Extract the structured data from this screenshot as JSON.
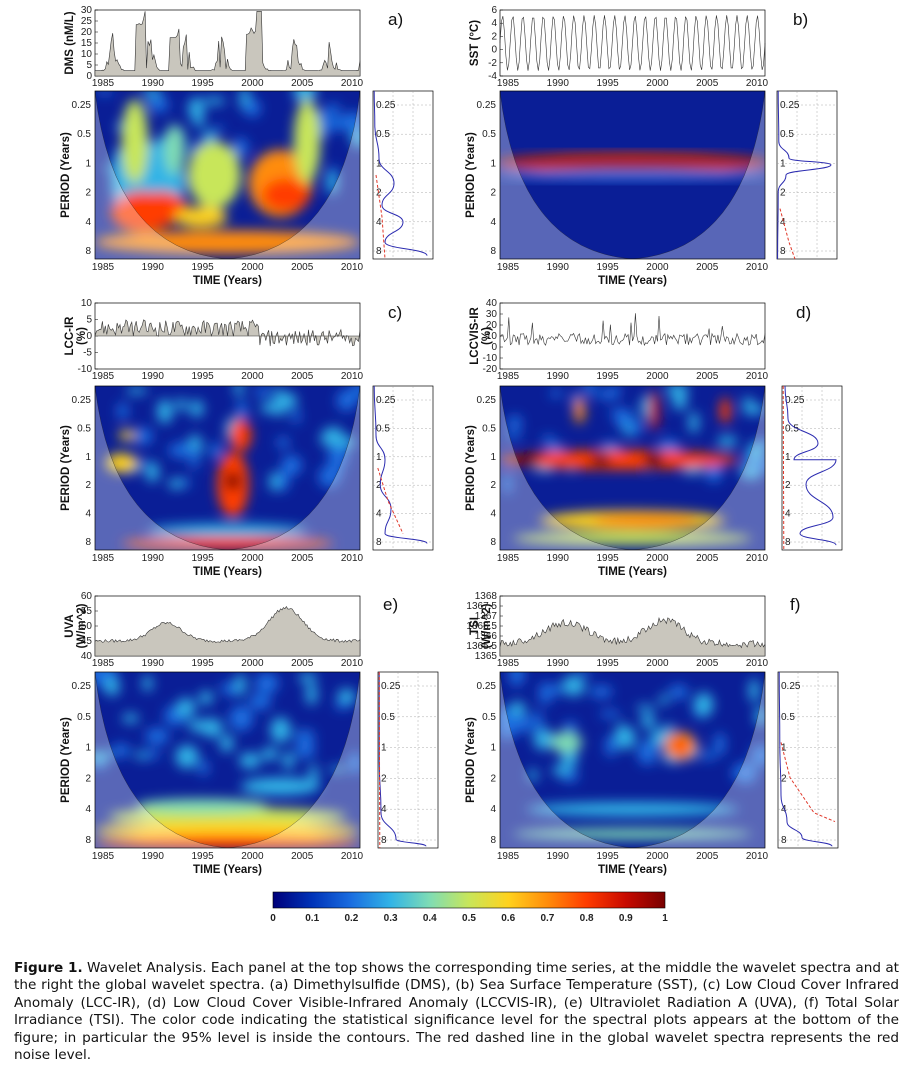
{
  "figure": {
    "xlabel": "TIME (Years)",
    "ylabel": "PERIOD (Years)",
    "year_ticks": [
      "1985",
      "1990",
      "1995",
      "2000",
      "2005",
      "2010"
    ],
    "period_ticks": [
      "0.25",
      "0.5",
      "1",
      "2",
      "4",
      "8"
    ],
    "colorbar": {
      "ticks": [
        "0",
        "0.1",
        "0.2",
        "0.3",
        "0.4",
        "0.5",
        "0.6",
        "0.7",
        "0.8",
        "0.9",
        "1"
      ],
      "colors": [
        "#00007a",
        "#0033b8",
        "#1a6ee0",
        "#32b4e6",
        "#7fdcb4",
        "#c8e65a",
        "#ffd21e",
        "#ff8c0a",
        "#ff3c00",
        "#c80a00",
        "#780000"
      ]
    },
    "panels": [
      {
        "letter": "a)",
        "ylabel_line1": "DMS (nM/L)",
        "ylabel_line2": "",
        "ts_ticks": [
          "0",
          "5",
          "10",
          "15",
          "20",
          "25",
          "30"
        ],
        "ts_style": "filled"
      },
      {
        "letter": "b)",
        "ylabel_line1": "SST (°C)",
        "ylabel_line2": "",
        "ts_ticks": [
          "-4",
          "-2",
          "0",
          "2",
          "4",
          "6"
        ],
        "ts_style": "sine"
      },
      {
        "letter": "c)",
        "ylabel_line1": "LCC-IR",
        "ylabel_line2": "(%)",
        "ts_ticks": [
          "-10",
          "-5",
          "0",
          "5",
          "10"
        ],
        "ts_style": "anomaly"
      },
      {
        "letter": "d)",
        "ylabel_line1": "LCCVIS-IR",
        "ylabel_line2": "(%)",
        "ts_ticks": [
          "-20",
          "-10",
          "0",
          "10",
          "20",
          "30",
          "40"
        ],
        "ts_style": "line"
      },
      {
        "letter": "e)",
        "ylabel_line1": "UVA",
        "ylabel_line2": "(W/m^2)",
        "ts_ticks": [
          "40",
          "45",
          "50",
          "55",
          "60"
        ],
        "ts_style": "filled"
      },
      {
        "letter": "f)",
        "ylabel_line1": "TSI",
        "ylabel_line2": "(W/m^2)",
        "ts_ticks": [
          "1365",
          "1365.5",
          "1366",
          "1366.5",
          "1367",
          "1367.5",
          "1368"
        ],
        "ts_style": "filled"
      }
    ]
  },
  "caption": {
    "label": "Figure 1.",
    "text": " Wavelet Analysis. Each panel at the top shows the corresponding time series, at the middle the wavelet spectra and at the right the global wavelet spectra. (a) Dimethylsulfide (DMS), (b) Sea Surface Temperature (SST), (c) Low Cloud Cover Infrared Anomaly (LCC-IR), (d) Low Cloud Cover Visible-Infrared Anomaly (LCCVIS-IR), (e) Ultraviolet Radiation A (UVA), (f) Total Solar Irradiance (TSI). The color code indicating the statistical significance level for the spectral plots appears at the bottom of the figure; in particular the 95% level is inside the contours. The red dashed line in the global wavelet spectra represents the red noise level."
  }
}
